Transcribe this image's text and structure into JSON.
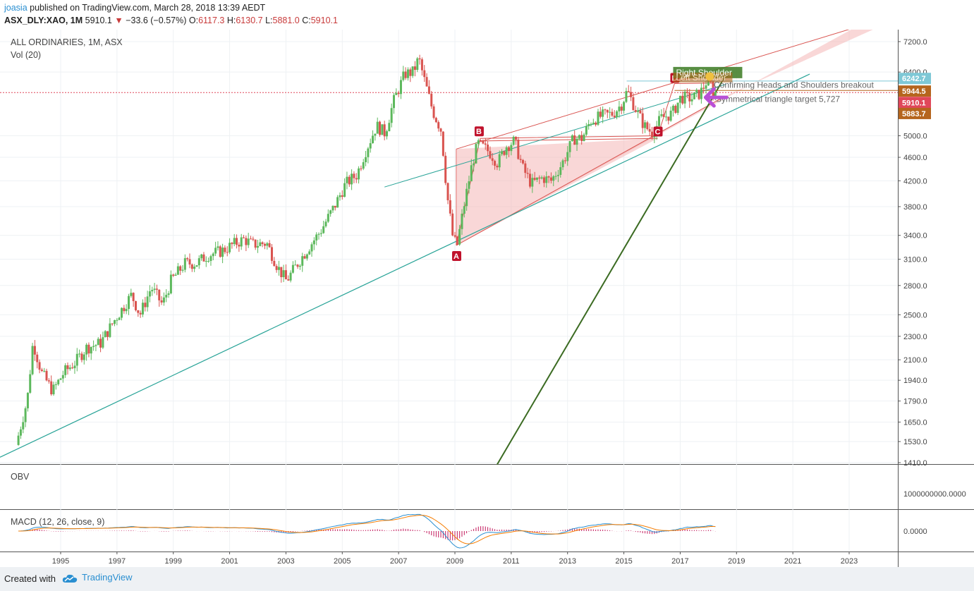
{
  "header": {
    "author": "joasia",
    "published_text": "published on TradingView.com, March 28, 2018 13:39 AEDT",
    "symbol": "ASX_DLY:XAO, 1M",
    "last_price": "5910.1",
    "change": "−33.6 (−0.57%)",
    "open_label": "O:",
    "open": "6117.3",
    "high_label": "H:",
    "high": "6130.7",
    "low_label": "L:",
    "low": "5881.0",
    "close_label": "C:",
    "close": "5910.1"
  },
  "main_pane": {
    "title": "ALL ORDINARIES, 1M, ASX",
    "volume_label": "Vol (20)",
    "annotations": {
      "confirming": "Confirming Heads and Shoulders breakout",
      "target": "Symmetrical triangle target 5,727",
      "right_shoulder": "Right Shoulder",
      "left_shoulder": "Left Shoulder"
    },
    "pattern_points": [
      "A",
      "B",
      "C",
      "D"
    ]
  },
  "obv_pane": {
    "label": "OBV",
    "axis_value": "1000000000.0000"
  },
  "macd_pane": {
    "label": "MACD (12, 26, close, 9)",
    "axis_value": "0.0000"
  },
  "price_badges": [
    {
      "value": "6242.7",
      "color": "#7ec8d6"
    },
    {
      "value": "5944.5",
      "color": "#b5651d"
    },
    {
      "value": "5910.1",
      "color": "#e0475a"
    },
    {
      "value": "5883.7",
      "color": "#b5651d"
    }
  ],
  "footer": {
    "created_with": "Created with",
    "brand": "TradingView"
  },
  "colors": {
    "up": "#5cb85c",
    "down": "#d9534f",
    "wedge_fill": "#f4b6b6",
    "wedge_line": "#d9534f",
    "trend_teal": "#27a397",
    "trend_green": "#3b6b22",
    "arrow": "#b84fd6"
  },
  "chart_data": {
    "type": "candlestick",
    "scale": "log",
    "y_ticks": [
      7200.0,
      6400.0,
      5000.0,
      4600.0,
      4200.0,
      3800.0,
      3400.0,
      3100.0,
      2800.0,
      2500.0,
      2300.0,
      2100.0,
      1940.0,
      1790.0,
      1650.0,
      1530.0,
      1410.0
    ],
    "y_tick_labels": [
      "7200.0",
      "6400.0",
      "5000.0",
      "4600.0",
      "4200.0",
      "3800.0",
      "3400.0",
      "3100.0",
      "2800.0",
      "2500.0",
      "2300.0",
      "2100.0",
      "1940.0",
      "1790.0",
      "1650.0",
      "1530.0",
      "1410.0"
    ],
    "x_ticks": [
      1995,
      1997,
      1999,
      2001,
      2003,
      2005,
      2007,
      2009,
      2011,
      2013,
      2015,
      2017,
      2019,
      2021,
      2023
    ],
    "ylim": [
      1400,
      7600
    ],
    "xlim": [
      1993.5,
      2024.5
    ],
    "price_path": [
      [
        1993.5,
        1510
      ],
      [
        1993.9,
        1800
      ],
      [
        1994.1,
        2250
      ],
      [
        1994.4,
        2000
      ],
      [
        1994.8,
        1860
      ],
      [
        1995.2,
        2000
      ],
      [
        1995.6,
        2080
      ],
      [
        1996.0,
        2200
      ],
      [
        1996.5,
        2240
      ],
      [
        1997.0,
        2450
      ],
      [
        1997.6,
        2700
      ],
      [
        1997.9,
        2500
      ],
      [
        1998.3,
        2780
      ],
      [
        1998.7,
        2600
      ],
      [
        1999.0,
        2850
      ],
      [
        1999.5,
        3050
      ],
      [
        1999.9,
        3050
      ],
      [
        2000.3,
        3150
      ],
      [
        2000.8,
        3200
      ],
      [
        2001.3,
        3300
      ],
      [
        2001.6,
        3350
      ],
      [
        2001.9,
        3280
      ],
      [
        2002.4,
        3300
      ],
      [
        2002.8,
        3000
      ],
      [
        2003.1,
        2850
      ],
      [
        2003.5,
        3050
      ],
      [
        2003.9,
        3250
      ],
      [
        2004.3,
        3450
      ],
      [
        2004.8,
        3800
      ],
      [
        2005.2,
        4150
      ],
      [
        2005.6,
        4300
      ],
      [
        2005.9,
        4700
      ],
      [
        2006.3,
        5200
      ],
      [
        2006.6,
        5050
      ],
      [
        2006.9,
        5700
      ],
      [
        2007.3,
        6350
      ],
      [
        2007.6,
        6400
      ],
      [
        2007.8,
        6750
      ],
      [
        2008.0,
        6200
      ],
      [
        2008.3,
        5500
      ],
      [
        2008.6,
        5100
      ],
      [
        2008.8,
        4000
      ],
      [
        2009.0,
        3400
      ],
      [
        2009.15,
        3250
      ],
      [
        2009.4,
        3800
      ],
      [
        2009.7,
        4500
      ],
      [
        2009.9,
        4850
      ],
      [
        2010.3,
        4700
      ],
      [
        2010.6,
        4500
      ],
      [
        2010.9,
        4800
      ],
      [
        2011.2,
        4900
      ],
      [
        2011.5,
        4400
      ],
      [
        2011.8,
        4150
      ],
      [
        2012.2,
        4250
      ],
      [
        2012.5,
        4200
      ],
      [
        2012.9,
        4500
      ],
      [
        2013.3,
        4950
      ],
      [
        2013.6,
        4950
      ],
      [
        2013.9,
        5300
      ],
      [
        2014.3,
        5400
      ],
      [
        2014.7,
        5450
      ],
      [
        2015.0,
        5650
      ],
      [
        2015.2,
        5950
      ],
      [
        2015.5,
        5550
      ],
      [
        2015.8,
        5200
      ],
      [
        2016.1,
        5050
      ],
      [
        2016.4,
        5350
      ],
      [
        2016.8,
        5450
      ],
      [
        2017.1,
        5800
      ],
      [
        2017.5,
        5780
      ],
      [
        2017.8,
        5900
      ],
      [
        2018.0,
        6150
      ],
      [
        2018.15,
        6130
      ],
      [
        2018.25,
        5910
      ]
    ]
  }
}
